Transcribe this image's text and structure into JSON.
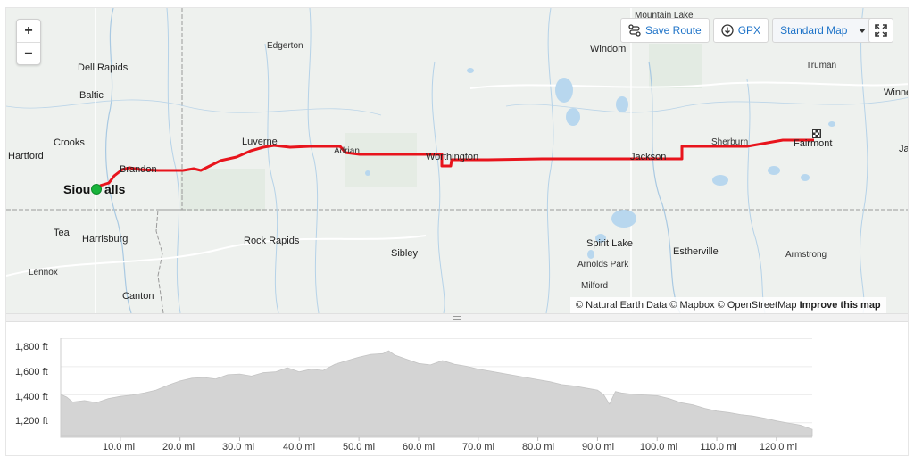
{
  "map": {
    "zoom_in": "+",
    "zoom_out": "−",
    "save_route": "Save Route",
    "gpx": "GPX",
    "map_style": "Standard Map",
    "attribution": {
      "natural_earth": "© Natural Earth Data",
      "mapbox": "© Mapbox",
      "osm": "© OpenStreetMap",
      "improve": "Improve this map"
    },
    "places": {
      "mountain_lake": "Mountain Lake",
      "edgerton": "Edgerton",
      "windom": "Windom",
      "dell_rapids": "Dell Rapids",
      "truman": "Truman",
      "baltic": "Baltic",
      "winnebago": "Winne",
      "crooks": "Crooks",
      "luverne": "Luverne",
      "sherburn": "Sherburn",
      "fairmont": "Fairmont",
      "hartford": "Hartford",
      "adrian": "Adrian",
      "brandon": "Brandon",
      "worthington": "Worthington",
      "jackson": "Jackson",
      "jac": "Jac",
      "sioux_falls_left": "Siou",
      "sioux_falls_right": "alls",
      "tea": "Tea",
      "harrisburg": "Harrisburg",
      "rock_rapids": "Rock Rapids",
      "sibley": "Sibley",
      "spirit_lake": "Spirit Lake",
      "estherville": "Estherville",
      "armstrong": "Armstrong",
      "arnolds_park": "Arnolds Park",
      "lennox": "Lennox",
      "milford": "Milford",
      "canton": "Canton"
    },
    "colors": {
      "route": "#e8141c",
      "start": "#17b33a",
      "water": "#b8d7ee",
      "border": "#9a9a9a"
    }
  },
  "elevation": {
    "y_ticks": [
      "1,800 ft",
      "1,600 ft",
      "1,400 ft",
      "1,200 ft"
    ],
    "x_ticks": [
      "10.0 mi",
      "20.0 mi",
      "30.0 mi",
      "40.0 mi",
      "50.0 mi",
      "60.0 mi",
      "70.0 mi",
      "80.0 mi",
      "90.0 mi",
      "100.0 mi",
      "110.0 mi",
      "120.0 mi"
    ],
    "fill_color": "#d4d4d4"
  },
  "chart_data": {
    "type": "area",
    "xlabel": "",
    "ylabel": "",
    "ylim": [
      1100,
      1800
    ],
    "xlim": [
      0,
      126
    ],
    "series": [
      {
        "x": [
          0,
          1,
          2,
          4,
          6,
          8,
          10,
          12,
          14,
          16,
          18,
          20,
          22,
          24,
          26,
          28,
          30,
          32,
          34,
          36,
          38,
          40,
          42,
          44,
          46,
          48,
          50,
          52,
          54,
          55,
          56,
          58,
          60,
          62,
          64,
          66,
          68,
          70,
          72,
          74,
          76,
          78,
          80,
          82,
          84,
          86,
          88,
          90,
          91,
          92,
          93,
          94,
          96,
          98,
          100,
          102,
          104,
          106,
          108,
          110,
          112,
          114,
          116,
          118,
          120,
          122,
          124,
          126
        ],
        "y": [
          1400,
          1380,
          1345,
          1355,
          1340,
          1370,
          1385,
          1395,
          1410,
          1430,
          1465,
          1495,
          1515,
          1520,
          1510,
          1540,
          1545,
          1530,
          1555,
          1560,
          1590,
          1560,
          1580,
          1570,
          1615,
          1640,
          1665,
          1685,
          1690,
          1710,
          1680,
          1650,
          1620,
          1610,
          1640,
          1615,
          1600,
          1580,
          1565,
          1550,
          1535,
          1520,
          1505,
          1490,
          1470,
          1460,
          1445,
          1430,
          1400,
          1330,
          1420,
          1410,
          1400,
          1395,
          1390,
          1370,
          1340,
          1325,
          1300,
          1280,
          1270,
          1255,
          1245,
          1230,
          1210,
          1195,
          1180,
          1150
        ]
      }
    ]
  }
}
